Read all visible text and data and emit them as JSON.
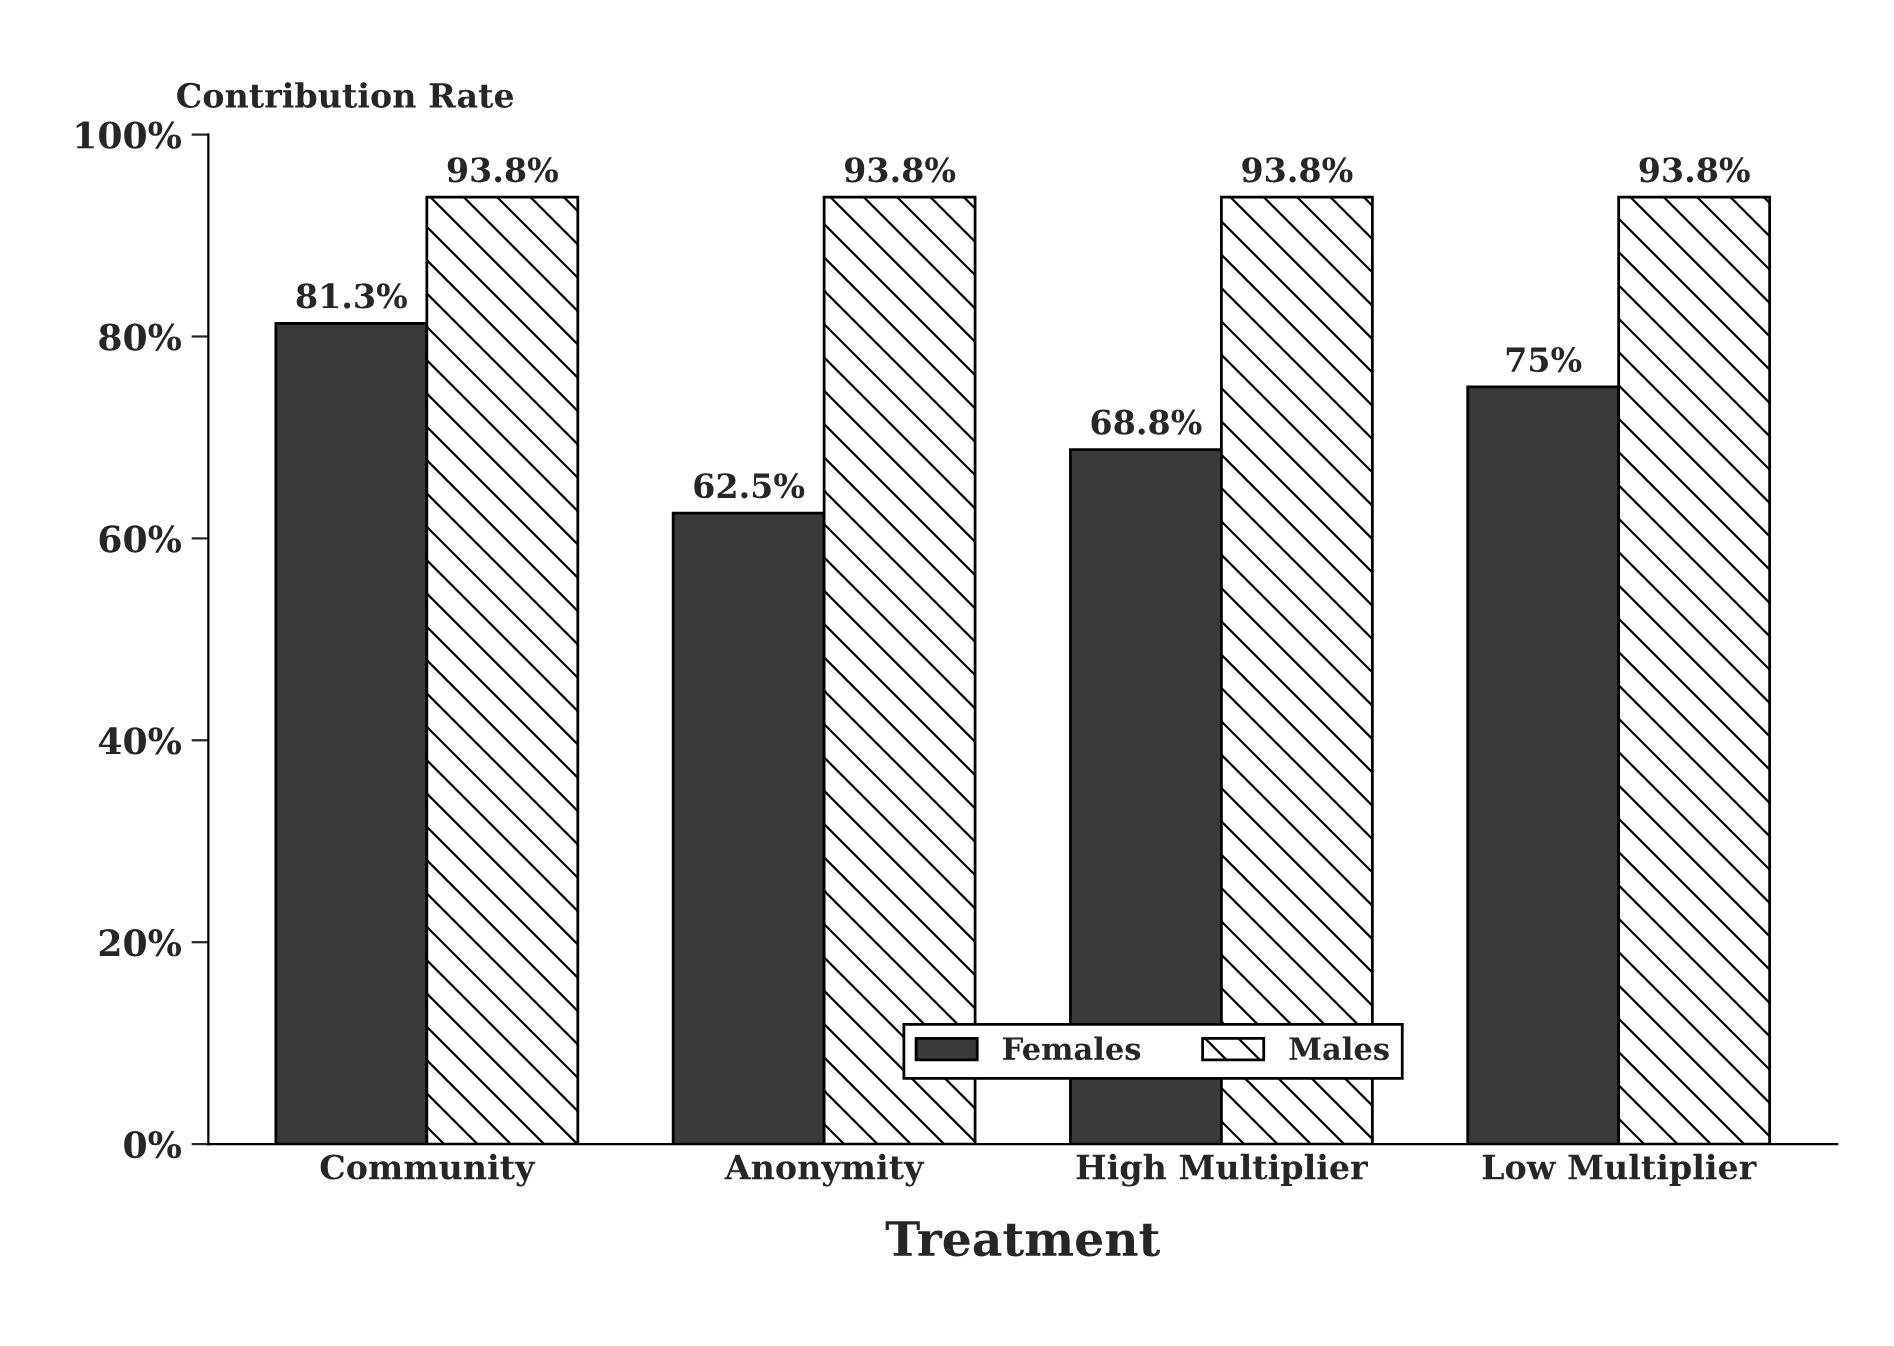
{
  "chart_data": {
    "type": "bar",
    "ylabel": "Contribution Rate",
    "xlabel": "Treatment",
    "categories": [
      "Community",
      "Anonymity",
      "High Multiplier",
      "Low Multiplier"
    ],
    "series": [
      {
        "name": "Females",
        "color": "#3a3a3a",
        "values": [
          81.3,
          62.5,
          68.8,
          75
        ],
        "value_labels": [
          "81.3%",
          "62.5%",
          "68.8%",
          "75%"
        ]
      },
      {
        "name": "Males",
        "color": "#ffffff",
        "values": [
          93.8,
          93.8,
          93.8,
          93.8
        ],
        "value_labels": [
          "93.8%",
          "93.8%",
          "93.8%",
          "93.8%"
        ]
      }
    ],
    "ylim": [
      0,
      100
    ],
    "yticks": [
      {
        "value": 0,
        "label": "0%"
      },
      {
        "value": 20,
        "label": "20%"
      },
      {
        "value": 40,
        "label": "40%"
      },
      {
        "value": 60,
        "label": "60%"
      },
      {
        "value": 80,
        "label": "80%"
      },
      {
        "value": 100,
        "label": "100%"
      }
    ],
    "grid": false,
    "legend": "bottom"
  }
}
